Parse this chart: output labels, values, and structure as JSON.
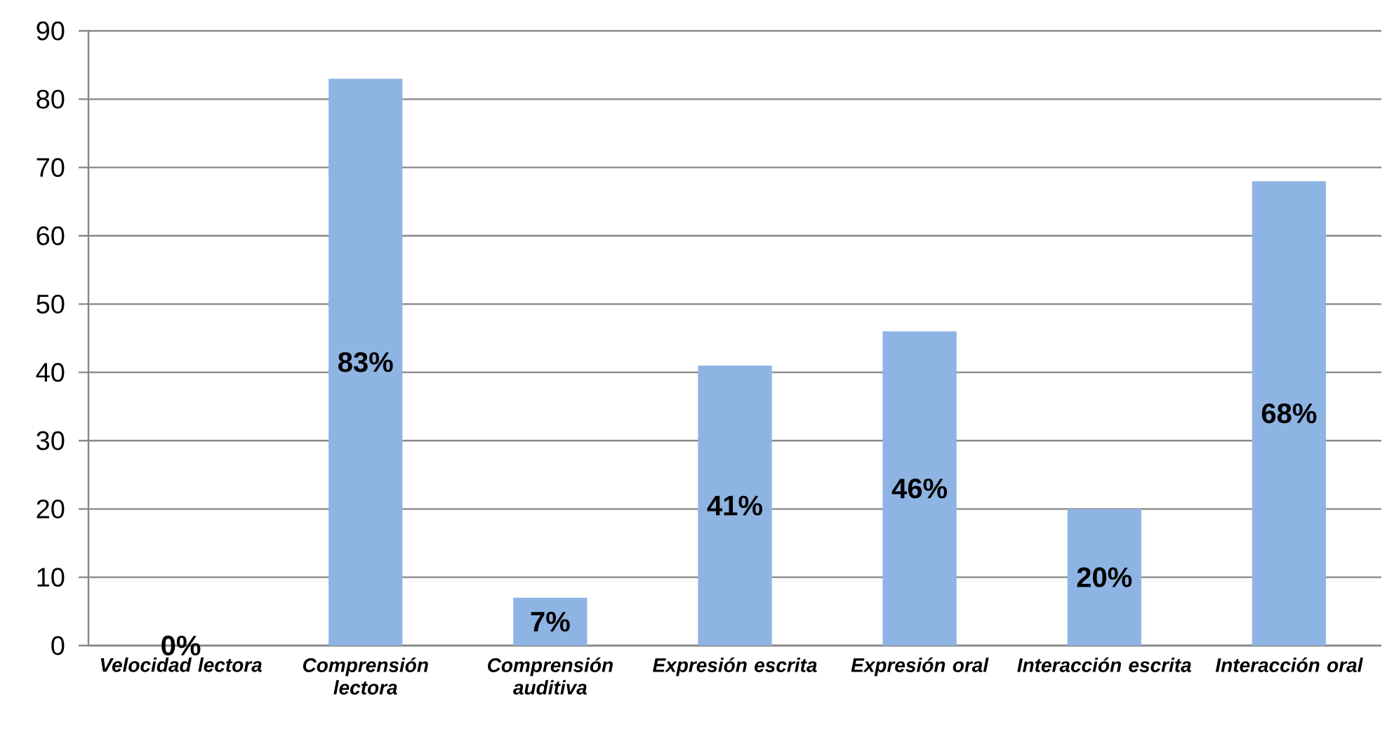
{
  "chart_data": {
    "type": "bar",
    "categories": [
      "Velocidad lectora",
      "Comprensión lectora",
      "Comprensión auditiva",
      "Expresión escrita",
      "Expresión oral",
      "Interacción escrita",
      "Interacción oral"
    ],
    "values": [
      0,
      83,
      7,
      41,
      46,
      20,
      68
    ],
    "value_labels": [
      "0%",
      "83%",
      "7%",
      "41%",
      "46%",
      "20%",
      "68%"
    ],
    "color": "#8eb4e3",
    "ylim": [
      0,
      90
    ],
    "yticks": [
      0,
      10,
      20,
      30,
      40,
      50,
      60,
      70,
      80,
      90
    ],
    "grid": "y"
  }
}
